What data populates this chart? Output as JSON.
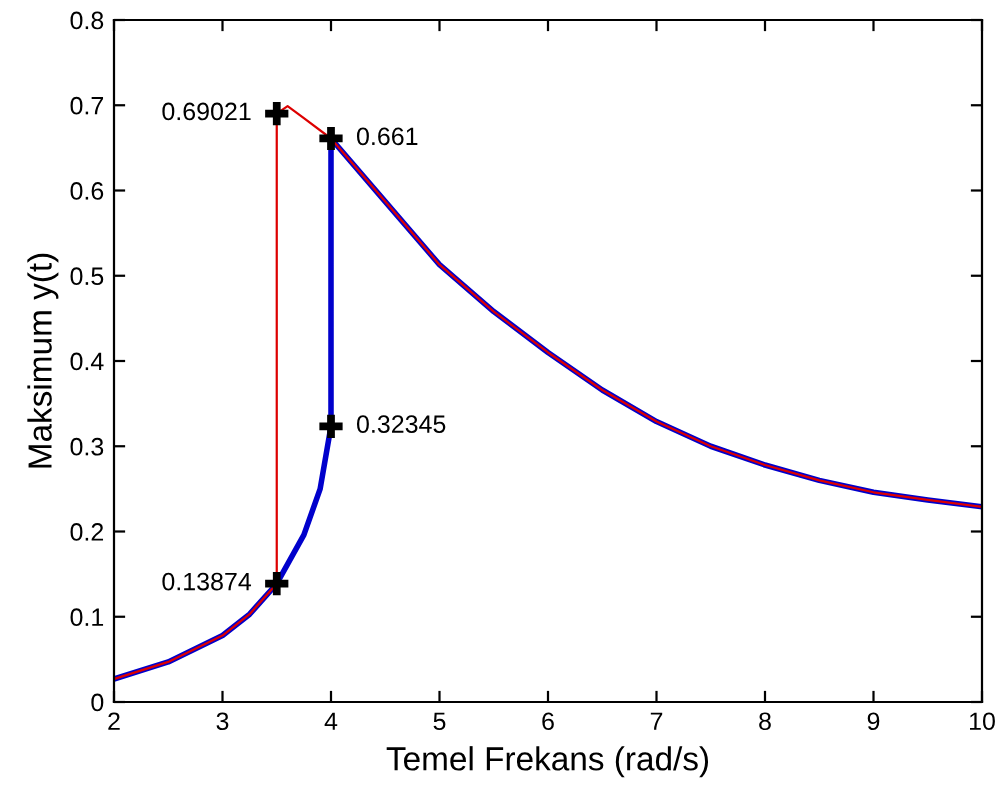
{
  "chart_data": {
    "type": "line",
    "xlabel": "Temel Frekans (rad/s)",
    "ylabel": "Maksimum y(t)",
    "xlim": [
      2,
      10
    ],
    "ylim": [
      0,
      0.8
    ],
    "xticks": [
      2,
      3,
      4,
      5,
      6,
      7,
      8,
      9,
      10
    ],
    "yticks": [
      0,
      0.1,
      0.2,
      0.3,
      0.4,
      0.5,
      0.6,
      0.7,
      0.8
    ],
    "grid": false,
    "legend": false,
    "series": [
      {
        "color": "#0000cc",
        "x": [
          2,
          2.5,
          3,
          3.25,
          3.5,
          3.75,
          3.9,
          4,
          4,
          4.5,
          5,
          5.5,
          6,
          6.5,
          7,
          7.5,
          8,
          8.5,
          9,
          9.5,
          10
        ],
        "values": [
          0.027,
          0.047,
          0.078,
          0.103,
          0.13874,
          0.196,
          0.25,
          0.32345,
          0.661,
          0.587,
          0.513,
          0.458,
          0.41,
          0.366,
          0.329,
          0.3,
          0.278,
          0.26,
          0.246,
          0.237,
          0.229
        ]
      },
      {
        "color": "#dd0000",
        "x": [
          10,
          9.5,
          9,
          8.5,
          8,
          7.5,
          7,
          6.5,
          6,
          5.5,
          5,
          4.5,
          4,
          3.75,
          3.6,
          3.5,
          3.5,
          3.25,
          3,
          2.5,
          2
        ],
        "values": [
          0.229,
          0.237,
          0.246,
          0.26,
          0.278,
          0.3,
          0.329,
          0.366,
          0.41,
          0.458,
          0.513,
          0.587,
          0.661,
          0.685,
          0.699,
          0.69021,
          0.13874,
          0.103,
          0.078,
          0.047,
          0.027
        ]
      },
      {
        "type": "scatter",
        "color": "#000000",
        "marker": "cross",
        "x": [
          3.5,
          4,
          4,
          3.5
        ],
        "values": [
          0.69021,
          0.661,
          0.32345,
          0.13874
        ],
        "value_labels": [
          "0.69021",
          "0.661",
          "0.32345",
          "0.13874"
        ]
      }
    ]
  }
}
